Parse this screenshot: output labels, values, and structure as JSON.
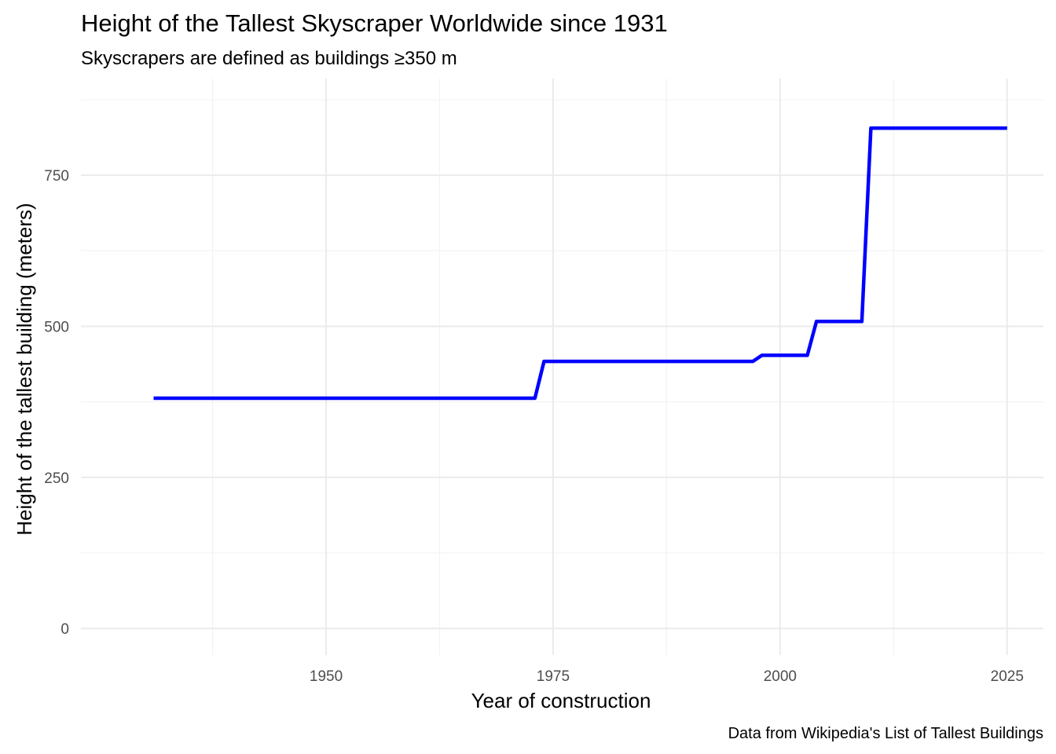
{
  "chart_data": {
    "type": "line",
    "title": "Height of the Tallest Skyscraper Worldwide since 1931",
    "subtitle": "Skyscrapers are defined as buildings ≥350 m",
    "caption": "Data from Wikipedia's List of Tallest Buildings",
    "xlabel": "Year of construction",
    "ylabel": "Height of the tallest building (meters)",
    "xlim": [
      1923,
      2029
    ],
    "ylim": [
      -44,
      910
    ],
    "x_ticks": [
      1950,
      1975,
      2000,
      2025
    ],
    "x_tick_labels": [
      "1950",
      "1975",
      "2000",
      "2025"
    ],
    "x_minor_ticks": [
      1937.5,
      1962.5,
      1987.5,
      2012.5
    ],
    "y_ticks": [
      0,
      250,
      500,
      750
    ],
    "y_tick_labels": [
      "0",
      "250",
      "500",
      "750"
    ],
    "y_minor_ticks": [
      125,
      375,
      625,
      875
    ],
    "grid": true,
    "legend": "none",
    "series": [
      {
        "color": "#0000ff",
        "x": [
          1931,
          1973,
          1974,
          1997,
          1998,
          2003,
          2004,
          2009,
          2010,
          2025
        ],
        "y": [
          381,
          381,
          442,
          442,
          452,
          452,
          508,
          508,
          828,
          828
        ]
      }
    ]
  }
}
